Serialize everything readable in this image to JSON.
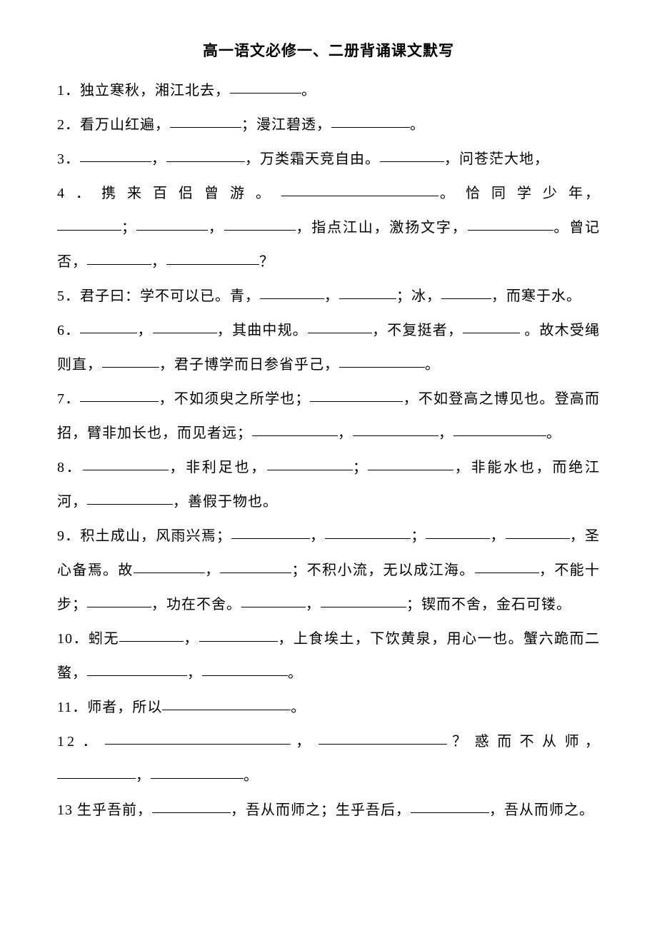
{
  "title": "高一语文必修一、二册背诵课文默写",
  "q1_a": "1．独立寒秋，湘江北去，",
  "q1_b": "。",
  "q2_a": "2．看万山红遍，",
  "q2_b": "；漫江碧透，",
  "q2_c": "。",
  "q3_a": "3．",
  "q3_b": "，",
  "q3_c": "，万类霜天竞自由。",
  "q3_d": "，问苍茫大地，",
  "q4_a": "4．携来百侣曾游。",
  "q4_b": "。恰同学少",
  "q4_c": "年，",
  "q4_d": "；",
  "q4_e": "，",
  "q4_f": "，指点江山，激扬文字，",
  "q4_g": "。曾记否，",
  "q4_h": "，",
  "q4_i": "？",
  "q5_a": "5．君子曰：学不可以已。青，",
  "q5_b": "，",
  "q5_c": "；冰，",
  "q5_d": "，而寒于水。",
  "q6_a": "6．",
  "q6_b": "，",
  "q6_c": "，其曲中规。",
  "q6_d": "，不复挺者，",
  "q6_e": " 。故木受绳则直，",
  "q6_f": "，君子博学而日参省乎己，",
  "q6_g": "。",
  "q7_a": "7．",
  "q7_b": "，不如须臾之所学也；",
  "q7_c": "，不如登高之博见也。登高而招，臂非加长也，而见者远；",
  "q7_d": "，",
  "q7_e": "，",
  "q7_f": "。",
  "q8_a": "8．",
  "q8_b": "，非利足也，",
  "q8_c": "；",
  "q8_d": "，非能水也，而绝江河，",
  "q8_e": "，善假于物也。",
  "q9_a": "9．积土成山，风雨兴焉；",
  "q9_b": "，",
  "q9_c": "；",
  "q9_d": "，",
  "q9_e": "，圣心备焉。故",
  "q9_f": "，",
  "q9_g": "；不积小流，无以成江海。",
  "q9_h": "，不能十步；",
  "q9_i": "，功在不舍。",
  "q9_j": "，",
  "q9_k": "；锲而不舍，金石可镂。",
  "q10_a": "10．蚓无",
  "q10_b": "，",
  "q10_c": "，上食埃土，下饮黄泉，用心一也。蟹六跪而二螯，",
  "q10_d": "，",
  "q10_e": "。",
  "q11_a": "11．师者，所以",
  "q11_b": "。",
  "q12_a": "12．",
  "q12_b": "，",
  "q12_c": "？惑而不从",
  "q12_d": "师，",
  "q12_e": "，",
  "q12_f": "。",
  "q13_a": "13 生乎吾前，",
  "q13_b": "，吾从而师之；生乎吾后，",
  "q13_c": "，吾从而师之。"
}
